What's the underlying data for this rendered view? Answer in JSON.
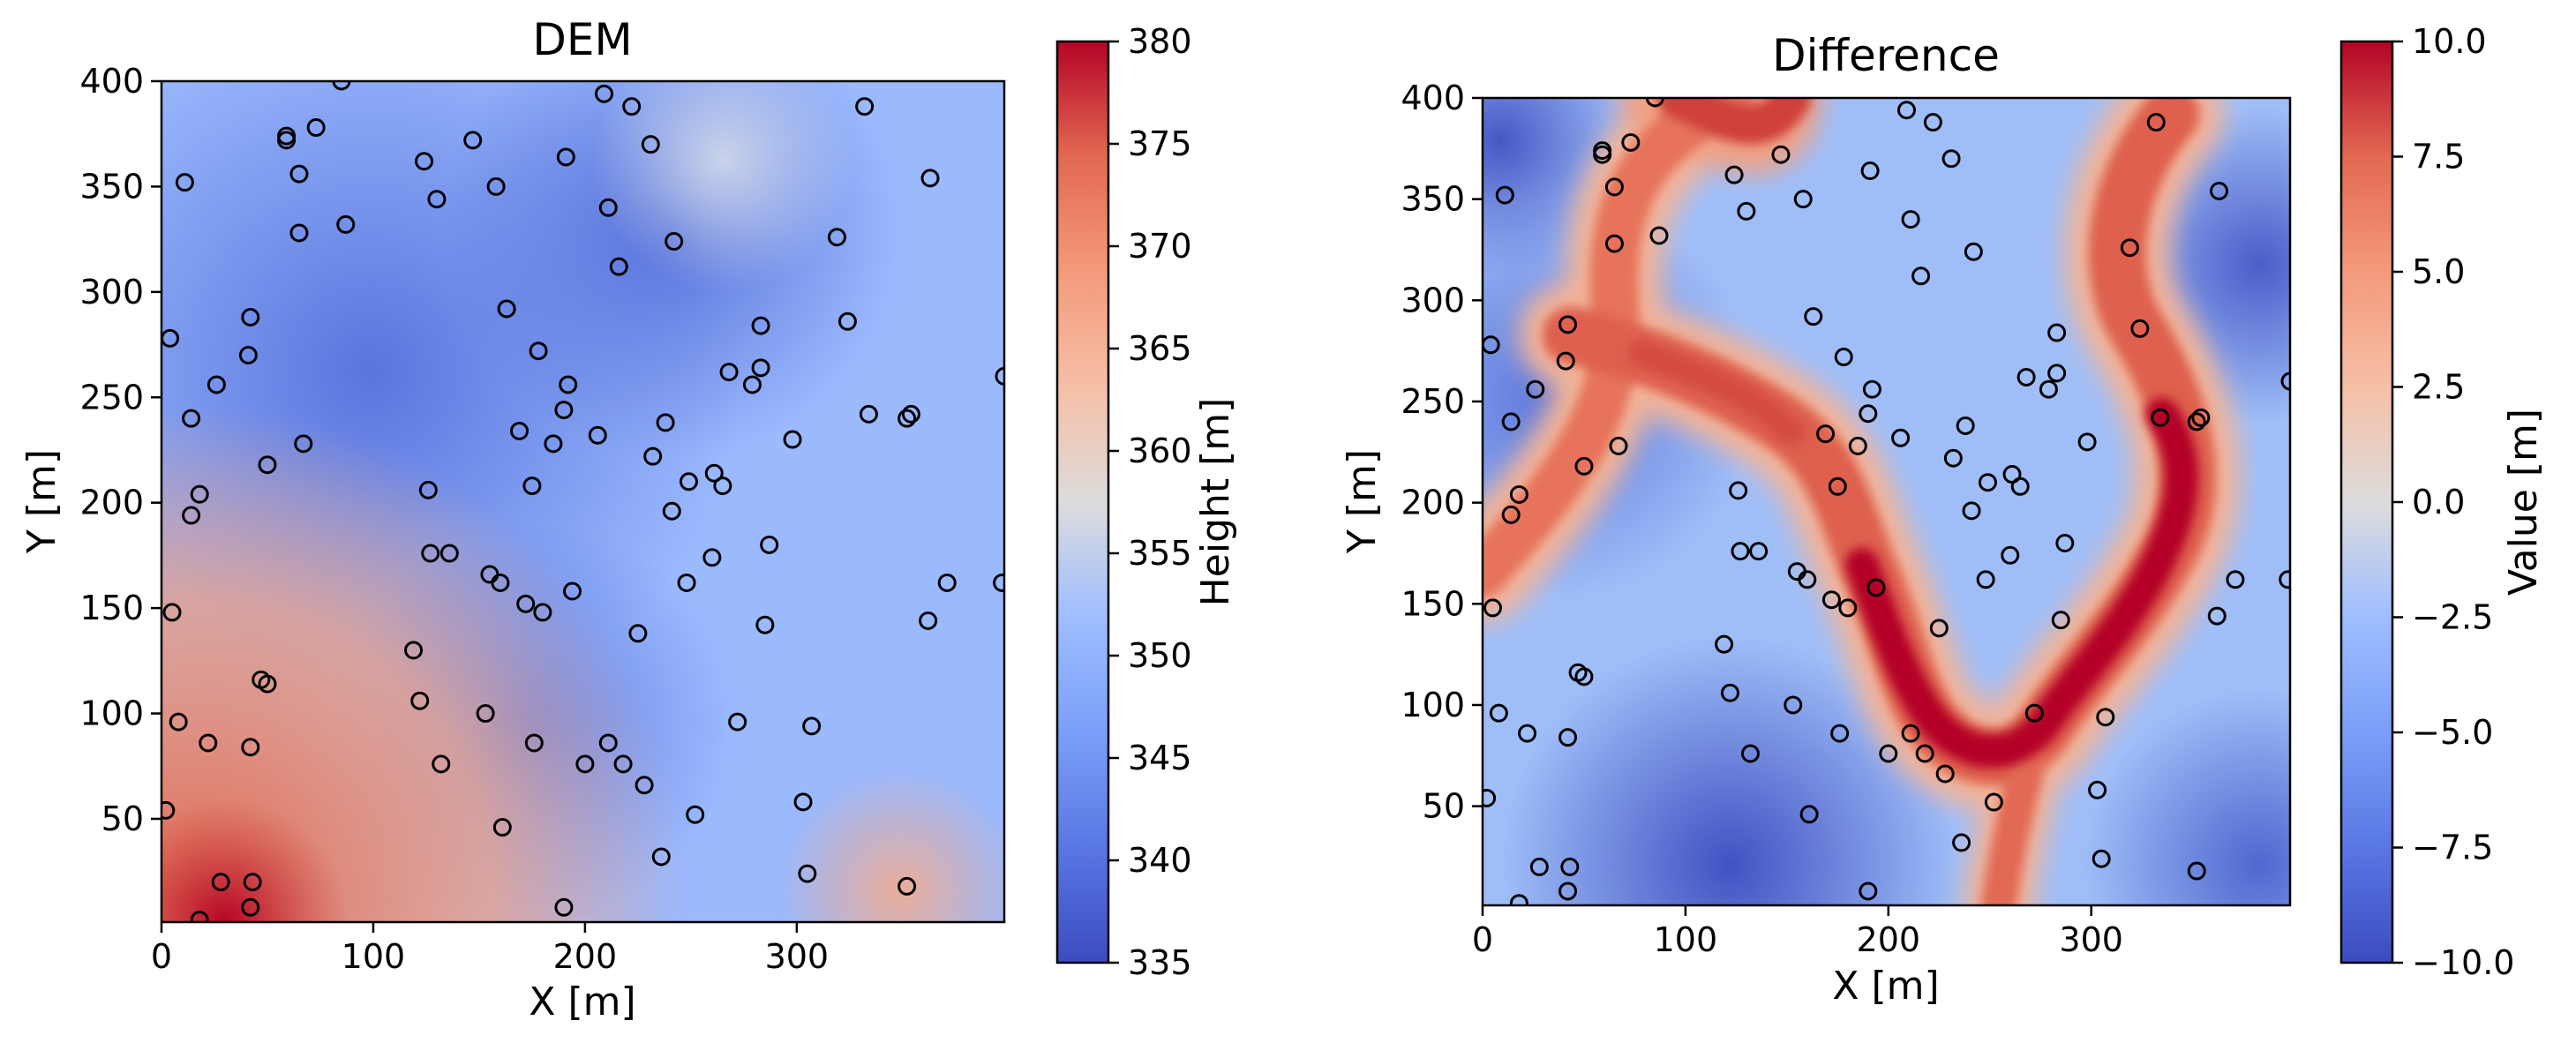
{
  "chart_data": [
    {
      "type": "heatmap",
      "title": "DEM",
      "xlabel": "X [m]",
      "ylabel": "Y [m]",
      "xlim": [
        0,
        398
      ],
      "ylim": [
        1,
        400
      ],
      "xticks": [
        0,
        100,
        200,
        300
      ],
      "yticks": [
        50,
        100,
        150,
        200,
        250,
        300,
        350,
        400
      ],
      "colormap": "coolwarm",
      "colorbar": {
        "label": "Height [m]",
        "range": [
          335,
          380
        ],
        "ticks": [
          "335",
          "340",
          "345",
          "350",
          "355",
          "360",
          "365",
          "370",
          "375",
          "380"
        ]
      }
    },
    {
      "type": "heatmap",
      "title": "Difference",
      "xlabel": "X [m]",
      "ylabel": "Y [m]",
      "xlim": [
        0,
        398
      ],
      "ylim": [
        1,
        400
      ],
      "xticks": [
        0,
        100,
        200,
        300
      ],
      "yticks": [
        50,
        100,
        150,
        200,
        250,
        300,
        350,
        400
      ],
      "colormap": "coolwarm",
      "colorbar": {
        "label": "Value [m]",
        "range": [
          -10,
          10
        ],
        "ticks": [
          "−10.0",
          "−7.5",
          "−5.0",
          "−2.5",
          "0.0",
          "2.5",
          "5.0",
          "7.5",
          "10.0"
        ]
      }
    }
  ],
  "sample_points": [
    [
      85,
      400
    ],
    [
      59,
      374
    ],
    [
      59,
      372
    ],
    [
      73,
      378
    ],
    [
      11,
      352
    ],
    [
      65,
      356
    ],
    [
      124,
      362
    ],
    [
      130,
      344
    ],
    [
      147,
      372
    ],
    [
      158,
      350
    ],
    [
      191,
      364
    ],
    [
      209,
      394
    ],
    [
      222,
      388
    ],
    [
      231,
      370
    ],
    [
      211,
      340
    ],
    [
      216,
      312
    ],
    [
      242,
      324
    ],
    [
      87,
      332
    ],
    [
      65,
      328
    ],
    [
      332,
      388
    ],
    [
      363,
      354
    ],
    [
      319,
      326
    ],
    [
      324,
      286
    ],
    [
      283,
      284
    ],
    [
      163,
      292
    ],
    [
      42,
      288
    ],
    [
      4,
      278
    ],
    [
      26,
      256
    ],
    [
      41,
      270
    ],
    [
      178,
      272
    ],
    [
      192,
      256
    ],
    [
      190,
      244
    ],
    [
      14,
      240
    ],
    [
      268,
      262
    ],
    [
      283,
      264
    ],
    [
      279,
      256
    ],
    [
      334,
      242
    ],
    [
      352,
      240
    ],
    [
      354,
      242
    ],
    [
      398,
      260
    ],
    [
      67,
      228
    ],
    [
      169,
      234
    ],
    [
      185,
      228
    ],
    [
      206,
      232
    ],
    [
      232,
      222
    ],
    [
      238,
      238
    ],
    [
      298,
      230
    ],
    [
      50,
      218
    ],
    [
      18,
      204
    ],
    [
      14,
      194
    ],
    [
      126,
      206
    ],
    [
      175,
      208
    ],
    [
      249,
      210
    ],
    [
      261,
      214
    ],
    [
      265,
      208
    ],
    [
      241,
      196
    ],
    [
      127,
      176
    ],
    [
      136,
      176
    ],
    [
      155,
      166
    ],
    [
      160,
      162
    ],
    [
      172,
      152
    ],
    [
      180,
      148
    ],
    [
      194,
      158
    ],
    [
      248,
      162
    ],
    [
      260,
      174
    ],
    [
      287,
      180
    ],
    [
      5,
      148
    ],
    [
      362,
      144
    ],
    [
      371,
      162
    ],
    [
      397,
      162
    ],
    [
      119,
      130
    ],
    [
      225,
      138
    ],
    [
      285,
      142
    ],
    [
      47,
      116
    ],
    [
      50,
      114
    ],
    [
      122,
      106
    ],
    [
      8,
      96
    ],
    [
      153,
      100
    ],
    [
      272,
      96
    ],
    [
      307,
      94
    ],
    [
      22,
      86
    ],
    [
      42,
      84
    ],
    [
      176,
      86
    ],
    [
      211,
      86
    ],
    [
      218,
      76
    ],
    [
      200,
      76
    ],
    [
      132,
      76
    ],
    [
      228,
      66
    ],
    [
      252,
      52
    ],
    [
      303,
      58
    ],
    [
      2,
      54
    ],
    [
      161,
      46
    ],
    [
      236,
      32
    ],
    [
      305,
      24
    ],
    [
      352,
      18
    ],
    [
      28,
      20
    ],
    [
      43,
      20
    ],
    [
      18,
      2
    ],
    [
      42,
      8
    ],
    [
      190,
      8
    ]
  ]
}
